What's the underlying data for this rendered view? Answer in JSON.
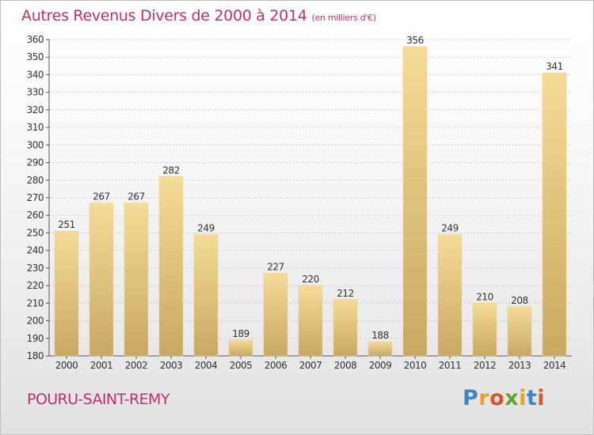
{
  "title": "Autres Revenus Divers de 2000 à 2014",
  "title_unit": "(en milliers d'€)",
  "location": "POURU-SAINT-REMY",
  "logo": {
    "text": "Proxiti",
    "letter_colors": [
      "#3a86c8",
      "#f0a020",
      "#e0522a",
      "#5aa832",
      "#f0a020",
      "#3a86c8",
      "#e0522a"
    ]
  },
  "colors": {
    "title": "#c0306a",
    "bar_light": "#f5dc96",
    "bar_dark": "#c8a862",
    "grid": "#cfcfcf",
    "text": "#333333"
  },
  "chart_data": {
    "type": "bar",
    "categories": [
      "2000",
      "2001",
      "2002",
      "2003",
      "2004",
      "2005",
      "2006",
      "2007",
      "2008",
      "2009",
      "2010",
      "2011",
      "2012",
      "2013",
      "2014"
    ],
    "values": [
      251,
      267,
      267,
      282,
      249,
      189,
      227,
      220,
      212,
      188,
      356,
      249,
      210,
      208,
      341
    ],
    "ylim": [
      180,
      360
    ],
    "ytick_step": 10,
    "grid": true,
    "data_labels": true
  }
}
